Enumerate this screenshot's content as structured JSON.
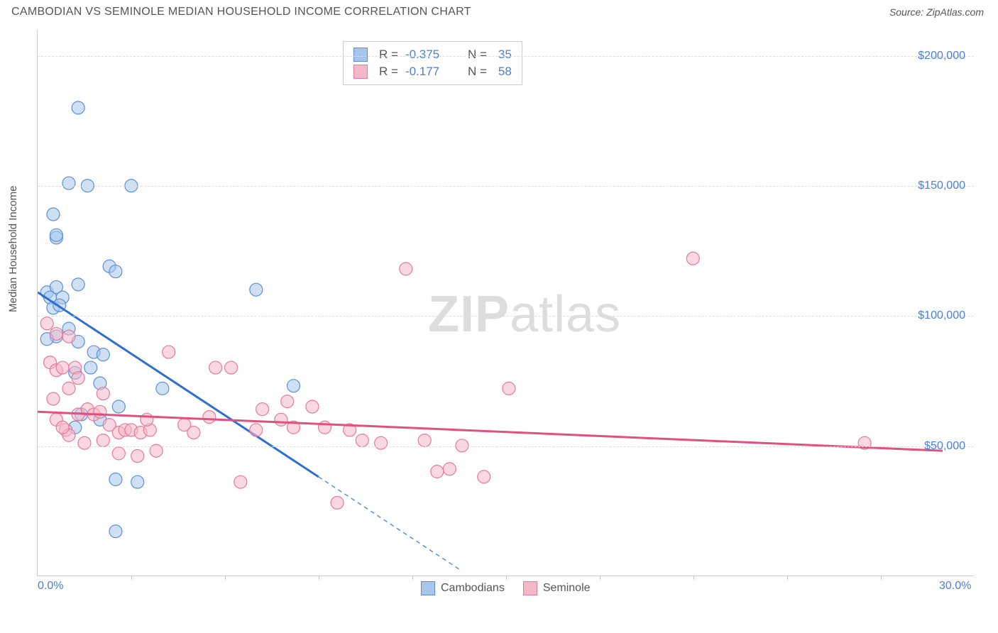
{
  "header": {
    "title": "CAMBODIAN VS SEMINOLE MEDIAN HOUSEHOLD INCOME CORRELATION CHART",
    "source_prefix": "Source: ",
    "source_name": "ZipAtlas.com"
  },
  "watermark": {
    "part1": "ZIP",
    "part2": "atlas"
  },
  "chart": {
    "type": "scatter",
    "xlim": [
      0.0,
      30.0
    ],
    "ylim": [
      0,
      210000
    ],
    "yticks": [
      {
        "v": 50000,
        "label": "$50,000"
      },
      {
        "v": 100000,
        "label": "$100,000"
      },
      {
        "v": 150000,
        "label": "$150,000"
      },
      {
        "v": 200000,
        "label": "$200,000"
      }
    ],
    "xticks": [
      {
        "v": 0.0,
        "label": "0.0%"
      },
      {
        "v": 30.0,
        "label": "30.0%"
      }
    ],
    "xminor": [
      3,
      6,
      9,
      12,
      15,
      18,
      21,
      24,
      27
    ],
    "ylabel": "Median Household Income",
    "background_color": "#ffffff",
    "grid_color": "#dddddd",
    "axis_color": "#cccccc",
    "tick_label_color": "#4a7fd8",
    "series": [
      {
        "name": "Cambodians",
        "fill": "#a8c6ec",
        "stroke": "#5b90d6",
        "line_color": "#2f6fd0",
        "marker_radius": 9,
        "fill_opacity": 0.55,
        "R": "-0.375",
        "N": "35",
        "points": [
          [
            0.3,
            109000
          ],
          [
            0.4,
            107000
          ],
          [
            0.5,
            103000
          ],
          [
            0.6,
            111000
          ],
          [
            0.8,
            107000
          ],
          [
            0.5,
            139000
          ],
          [
            0.6,
            130000
          ],
          [
            0.6,
            131000
          ],
          [
            1.3,
            180000
          ],
          [
            1.0,
            151000
          ],
          [
            1.3,
            112000
          ],
          [
            1.6,
            150000
          ],
          [
            3.0,
            150000
          ],
          [
            2.3,
            119000
          ],
          [
            2.5,
            117000
          ],
          [
            1.0,
            95000
          ],
          [
            1.3,
            90000
          ],
          [
            0.6,
            92000
          ],
          [
            0.3,
            91000
          ],
          [
            1.8,
            86000
          ],
          [
            2.1,
            85000
          ],
          [
            1.2,
            78000
          ],
          [
            2.0,
            74000
          ],
          [
            2.6,
            65000
          ],
          [
            2.0,
            60000
          ],
          [
            4.0,
            72000
          ],
          [
            7.0,
            110000
          ],
          [
            8.2,
            73000
          ],
          [
            3.2,
            36000
          ],
          [
            2.5,
            17000
          ],
          [
            2.5,
            37000
          ],
          [
            1.2,
            57000
          ],
          [
            1.4,
            62000
          ],
          [
            1.7,
            80000
          ],
          [
            0.7,
            104000
          ]
        ],
        "regression": {
          "x1": 0.0,
          "y1": 109000,
          "x2": 9.0,
          "y2": 38000
        },
        "regression_extend": {
          "x1": 9.0,
          "y1": 38000,
          "x2": 13.5,
          "y2": 2500
        }
      },
      {
        "name": "Seminole",
        "fill": "#f5b8c8",
        "stroke": "#e47a9a",
        "line_color": "#e0527e",
        "marker_radius": 9,
        "fill_opacity": 0.55,
        "R": "-0.177",
        "N": "58",
        "points": [
          [
            0.3,
            97000
          ],
          [
            0.6,
            93000
          ],
          [
            0.4,
            82000
          ],
          [
            0.6,
            79000
          ],
          [
            0.8,
            80000
          ],
          [
            1.2,
            80000
          ],
          [
            1.0,
            92000
          ],
          [
            1.3,
            76000
          ],
          [
            1.0,
            72000
          ],
          [
            0.5,
            68000
          ],
          [
            0.6,
            60000
          ],
          [
            0.9,
            56000
          ],
          [
            1.0,
            54000
          ],
          [
            1.3,
            62000
          ],
          [
            1.6,
            64000
          ],
          [
            1.8,
            62000
          ],
          [
            2.0,
            63000
          ],
          [
            2.1,
            70000
          ],
          [
            2.3,
            58000
          ],
          [
            2.6,
            55000
          ],
          [
            2.8,
            56000
          ],
          [
            2.6,
            47000
          ],
          [
            3.0,
            56000
          ],
          [
            3.3,
            55000
          ],
          [
            3.6,
            56000
          ],
          [
            3.2,
            46000
          ],
          [
            3.8,
            48000
          ],
          [
            4.2,
            86000
          ],
          [
            4.7,
            58000
          ],
          [
            5.0,
            55000
          ],
          [
            5.5,
            61000
          ],
          [
            5.7,
            80000
          ],
          [
            6.2,
            80000
          ],
          [
            6.5,
            36000
          ],
          [
            7.0,
            56000
          ],
          [
            7.2,
            64000
          ],
          [
            7.8,
            60000
          ],
          [
            8.0,
            67000
          ],
          [
            8.2,
            57000
          ],
          [
            8.8,
            65000
          ],
          [
            9.2,
            57000
          ],
          [
            9.6,
            28000
          ],
          [
            10.0,
            56000
          ],
          [
            10.4,
            52000
          ],
          [
            11.0,
            51000
          ],
          [
            11.8,
            118000
          ],
          [
            12.4,
            52000
          ],
          [
            12.8,
            40000
          ],
          [
            13.2,
            41000
          ],
          [
            13.6,
            50000
          ],
          [
            14.3,
            38000
          ],
          [
            15.1,
            72000
          ],
          [
            21.0,
            122000
          ],
          [
            26.5,
            51000
          ],
          [
            2.1,
            52000
          ],
          [
            1.5,
            51000
          ],
          [
            0.8,
            57000
          ],
          [
            3.5,
            60000
          ]
        ],
        "regression": {
          "x1": 0.0,
          "y1": 63000,
          "x2": 29.0,
          "y2": 48000
        }
      }
    ]
  },
  "legend_top": {
    "r_label": "R = ",
    "n_label": "N ="
  },
  "legend_bottom": {
    "items": [
      "Cambodians",
      "Seminole"
    ]
  }
}
